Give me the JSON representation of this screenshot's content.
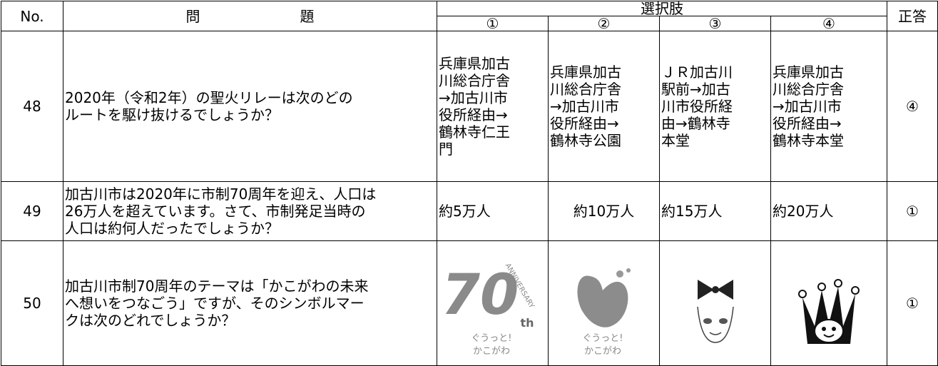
{
  "header": {
    "no": "No.",
    "question": [
      "問",
      "題"
    ],
    "choices": "選択肢",
    "options": [
      "①",
      "②",
      "③",
      "④"
    ],
    "answer": "正答"
  },
  "rows": [
    {
      "no": "48",
      "question": " 2020年（令和2年）の聖火リレーは次のどの\nルートを駆け抜けるでしょうか？",
      "choices": [
        "兵庫県加古\n川総合庁舎\n→加古川市\n役所経由→\n鶴林寺仁王\n門",
        "兵庫県加古\n川総合庁舎\n→加古川市\n役所経由→\n鶴林寺公園",
        "ＪＲ加古川\n駅前→加古\n川市役所経\n由→鶴林寺\n本堂",
        "兵庫県加古\n川総合庁舎\n→加古川市\n役所経由→\n鶴林寺本堂"
      ],
      "answer": "④"
    },
    {
      "no": "49",
      "question": "加古川市は2020年に市制70周年を迎え、人口は\n26万人を超えています。さて、市制発足当時の\n人口は約何人だったでしょうか？",
      "choices": [
        "約5万人",
        "約10万人",
        "約15万人",
        "約20万人"
      ],
      "answer": "①"
    },
    {
      "no": "50",
      "question": "加古川市制70周年のテーマは「かこがわの未来\nへ想いをつなごう」ですが、そのシンボルマー\nクは次のどれでしょうか？",
      "logo_texts": {
        "big": "70",
        "anniversary": "ANNIVERSARY",
        "th": "th",
        "slogan": "ぐうっと!",
        "city": "かこがわ"
      },
      "answer": "①"
    }
  ]
}
